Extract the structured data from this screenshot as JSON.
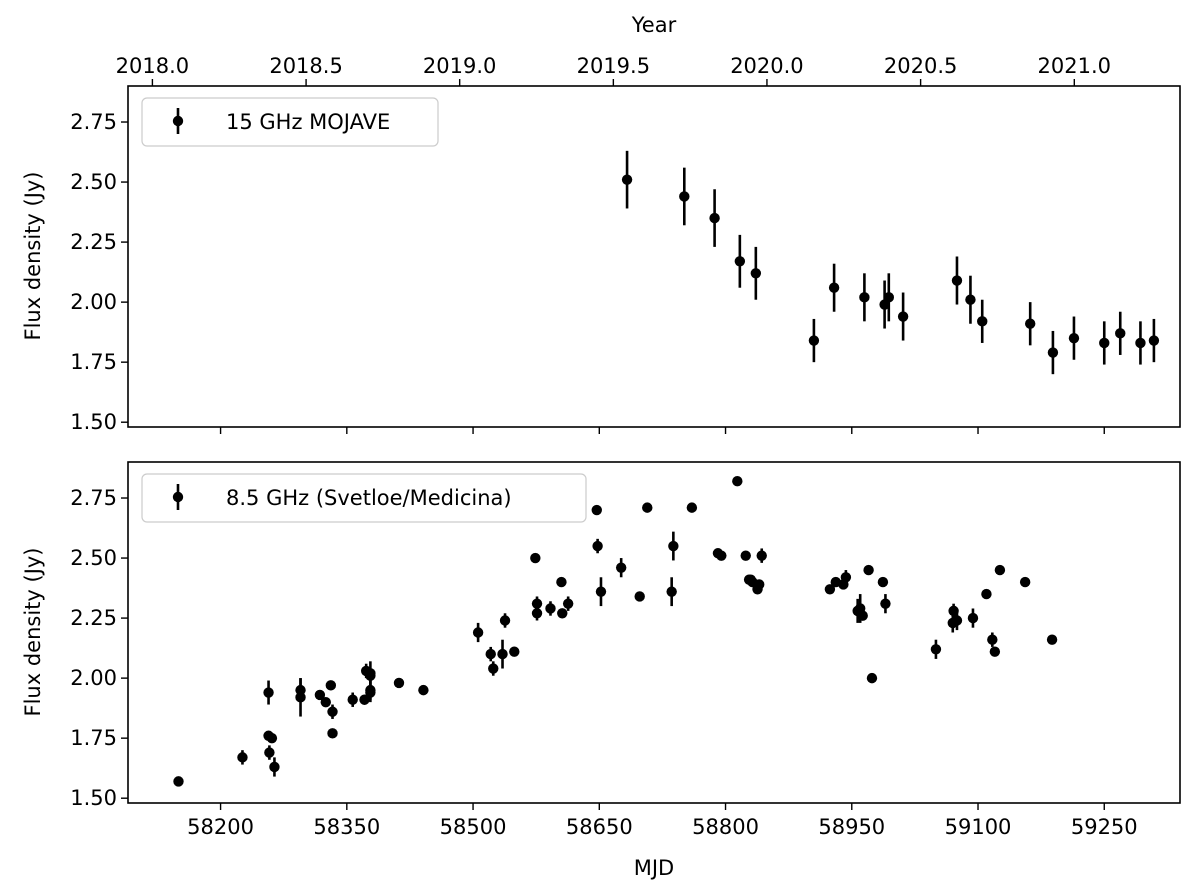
{
  "chart_data": [
    {
      "type": "scatter",
      "errorbars": true,
      "xlabel": "",
      "ylabel": "Flux density (Jy)",
      "xlim": [
        58090,
        59340
      ],
      "ylim": [
        1.48,
        2.9
      ],
      "x_ticks": [
        58200,
        58350,
        58500,
        58650,
        58800,
        58950,
        59100,
        59250
      ],
      "y_ticks": [
        "1.50",
        "1.75",
        "2.00",
        "2.25",
        "2.50",
        "2.75"
      ],
      "top_axis": {
        "label": "Year",
        "ticks": [
          "2018.0",
          "2018.5",
          "2019.0",
          "2019.5",
          "2020.0",
          "2020.5",
          "2021.0"
        ],
        "tick_mjd": [
          58119.0,
          58301.6,
          58484.1,
          58666.7,
          58849.2,
          59031.8,
          59214.4
        ]
      },
      "legend": "upper-left",
      "marker_color": "#000000",
      "series": [
        {
          "name": "15 GHz MOJAVE",
          "x": [
            58683,
            58751,
            58787,
            58817,
            58836,
            58905,
            58929,
            58965,
            58989,
            58994,
            59011,
            59075,
            59091,
            59105,
            59162,
            59189,
            59214,
            59250,
            59269,
            59293,
            59309
          ],
          "y": [
            2.51,
            2.44,
            2.35,
            2.17,
            2.12,
            1.84,
            2.06,
            2.02,
            1.99,
            2.02,
            1.94,
            2.09,
            2.01,
            1.92,
            1.91,
            1.79,
            1.85,
            1.83,
            1.87,
            1.83,
            1.84
          ],
          "err": [
            0.12,
            0.12,
            0.12,
            0.11,
            0.11,
            0.09,
            0.1,
            0.1,
            0.1,
            0.1,
            0.1,
            0.1,
            0.1,
            0.09,
            0.09,
            0.09,
            0.09,
            0.09,
            0.09,
            0.09,
            0.09
          ]
        }
      ]
    },
    {
      "type": "scatter",
      "errorbars": true,
      "xlabel": "MJD",
      "ylabel": "Flux density (Jy)",
      "xlim": [
        58090,
        59340
      ],
      "ylim": [
        1.48,
        2.9
      ],
      "x_ticks": [
        58200,
        58350,
        58500,
        58650,
        58800,
        58950,
        59100,
        59250
      ],
      "y_ticks": [
        "1.50",
        "1.75",
        "2.00",
        "2.25",
        "2.50",
        "2.75"
      ],
      "legend": "upper-left",
      "marker_color": "#000000",
      "series": [
        {
          "name": "8.5 GHz (Svetloe/Medicina)",
          "x": [
            58150,
            58226,
            58257,
            58257,
            58258,
            58261,
            58264,
            58295,
            58295,
            58318,
            58325,
            58331,
            58333,
            58333,
            58357,
            58371,
            58373,
            58378,
            58378,
            58378,
            58378,
            58412,
            58441,
            58506,
            58521,
            58524,
            58535,
            58538,
            58549,
            58574,
            58576,
            58576,
            58592,
            58605,
            58606,
            58613,
            58647,
            58648,
            58652,
            58676,
            58698,
            58707,
            58736,
            58738,
            58760,
            58791,
            58795,
            58814,
            58824,
            58828,
            58830,
            58832,
            58838,
            58840,
            58843,
            58924,
            58931,
            58940,
            58943,
            58957,
            58960,
            58963,
            58970,
            58974,
            58987,
            58990,
            59050,
            59070,
            59071,
            59075,
            59094,
            59110,
            59117,
            59120,
            59126,
            59156,
            59188
          ],
          "y": [
            1.57,
            1.67,
            1.94,
            1.76,
            1.69,
            1.75,
            1.63,
            1.95,
            1.92,
            1.93,
            1.9,
            1.97,
            1.86,
            1.77,
            1.91,
            1.91,
            2.03,
            1.94,
            2.02,
            2.01,
            1.95,
            1.98,
            1.95,
            2.19,
            2.1,
            2.04,
            2.1,
            2.24,
            2.11,
            2.5,
            2.31,
            2.27,
            2.29,
            2.4,
            2.27,
            2.31,
            2.7,
            2.55,
            2.36,
            2.46,
            2.34,
            2.71,
            2.36,
            2.55,
            2.71,
            2.52,
            2.51,
            2.82,
            2.51,
            2.41,
            2.41,
            2.4,
            2.37,
            2.39,
            2.51,
            2.37,
            2.4,
            2.39,
            2.42,
            2.28,
            2.29,
            2.26,
            2.45,
            2.0,
            2.4,
            2.31,
            2.12,
            2.23,
            2.28,
            2.24,
            2.25,
            2.35,
            2.16,
            2.11,
            2.45,
            2.4,
            2.16
          ],
          "err": [
            0.01,
            0.03,
            0.05,
            0.01,
            0.03,
            0.01,
            0.04,
            0.05,
            0.08,
            0.02,
            0.01,
            0.02,
            0.03,
            0.01,
            0.03,
            0.02,
            0.03,
            0.04,
            0.05,
            0.03,
            0.04,
            0.02,
            0.02,
            0.04,
            0.03,
            0.03,
            0.06,
            0.03,
            0.02,
            0.01,
            0.03,
            0.03,
            0.03,
            0.01,
            0.02,
            0.03,
            0.01,
            0.03,
            0.06,
            0.04,
            0.02,
            0.01,
            0.06,
            0.06,
            0.01,
            0.01,
            0.01,
            0.01,
            0.01,
            0.02,
            0.01,
            0.01,
            0.02,
            0.01,
            0.03,
            0.01,
            0.01,
            0.01,
            0.03,
            0.05,
            0.06,
            0.01,
            0.01,
            0.01,
            0.01,
            0.04,
            0.04,
            0.04,
            0.03,
            0.04,
            0.04,
            0.01,
            0.03,
            0.01,
            0.01,
            0.01,
            0.01
          ]
        }
      ]
    }
  ]
}
